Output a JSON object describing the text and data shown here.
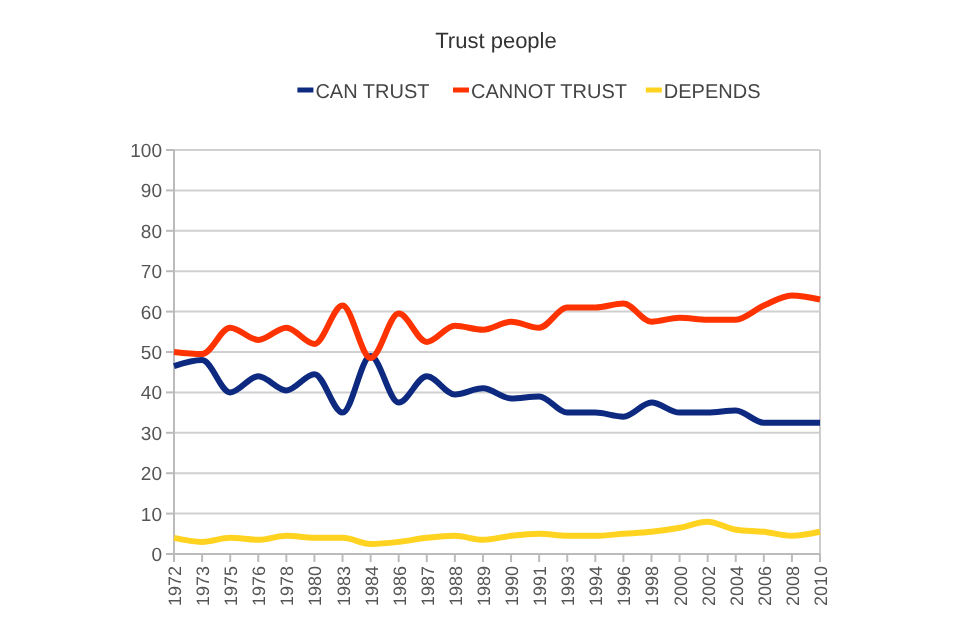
{
  "chart_data": {
    "type": "line",
    "title": "Trust people",
    "categories": [
      "1972",
      "1973",
      "1975",
      "1976",
      "1978",
      "1980",
      "1983",
      "1984",
      "1986",
      "1987",
      "1988",
      "1989",
      "1990",
      "1991",
      "1993",
      "1994",
      "1996",
      "1998",
      "2000",
      "2002",
      "2004",
      "2006",
      "2008",
      "2010"
    ],
    "series": [
      {
        "name": "CAN TRUST",
        "color": "#0d2a80",
        "values": [
          46.5,
          48,
          40,
          44,
          40.5,
          44.5,
          35,
          49,
          37.5,
          44,
          39.5,
          41,
          38.5,
          39,
          35,
          35,
          34,
          37.5,
          35,
          35,
          35.5,
          32.5,
          32.5,
          32.5
        ]
      },
      {
        "name": "CANNOT TRUST",
        "color": "#ff3300",
        "values": [
          50,
          49.5,
          56,
          53,
          56,
          52,
          61.5,
          48.5,
          59.5,
          52.5,
          56.5,
          55.5,
          57.5,
          56,
          61,
          61,
          62,
          57.5,
          58.5,
          58,
          58,
          61.5,
          64,
          63
        ]
      },
      {
        "name": "DEPENDS",
        "color": "#ffd320",
        "values": [
          4,
          3,
          4,
          3.5,
          4.5,
          4,
          4,
          2.5,
          3,
          4,
          4.5,
          3.5,
          4.5,
          5,
          4.5,
          4.5,
          5,
          5.5,
          6.5,
          8,
          6,
          5.5,
          4.5,
          5.5
        ]
      }
    ],
    "ylim": [
      0,
      100
    ],
    "yticks": [
      0,
      10,
      20,
      30,
      40,
      50,
      60,
      70,
      80,
      90,
      100
    ],
    "grid": "y",
    "legend": "top",
    "marker": "none",
    "line_style": "solid"
  }
}
